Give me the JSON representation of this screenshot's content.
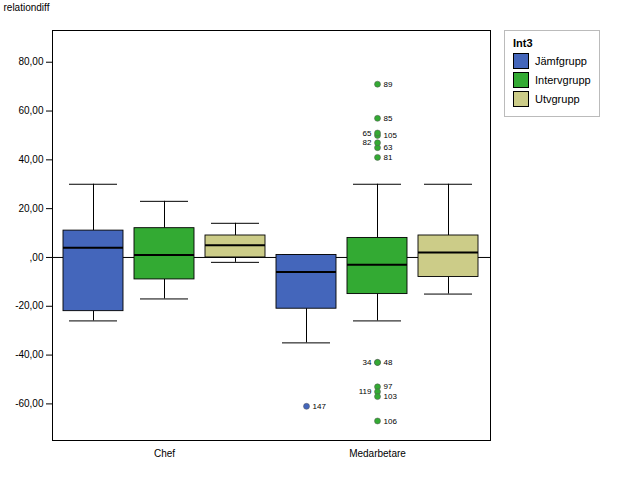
{
  "chart_data": {
    "type": "box",
    "ylabel": "relationdiff",
    "categories": [
      "Chef",
      "Medarbetare"
    ],
    "legend_title": "Int3",
    "legend": "right",
    "grid": false,
    "ylim": [
      -75,
      93
    ],
    "yticks": [
      {
        "value": -60,
        "label": "-60,00"
      },
      {
        "value": -40,
        "label": "-40,00"
      },
      {
        "value": -20,
        "label": "-20,00"
      },
      {
        "value": 0,
        "label": ",00"
      },
      {
        "value": 20,
        "label": "20,00"
      },
      {
        "value": 40,
        "label": "40,00"
      },
      {
        "value": 60,
        "label": "60,00"
      },
      {
        "value": 80,
        "label": "80,00"
      }
    ],
    "series": [
      {
        "name": "Jämfgrupp",
        "color": "#4466bb",
        "values": [
          {
            "whislo": -26,
            "q1": -22,
            "med": 4,
            "q3": 11,
            "whishi": 30,
            "outliers": []
          },
          {
            "whislo": -35,
            "q1": -21,
            "med": -6,
            "q3": 1,
            "whishi": 1,
            "outliers": [
              {
                "value": -61,
                "label": "147"
              }
            ]
          }
        ]
      },
      {
        "name": "Intervgrupp",
        "color": "#33aa33",
        "values": [
          {
            "whislo": -17,
            "q1": -9,
            "med": 1,
            "q3": 12,
            "whishi": 23,
            "outliers": []
          },
          {
            "whislo": -26,
            "q1": -15,
            "med": -3,
            "q3": 8,
            "whishi": 30,
            "outliers": [
              {
                "value": 41,
                "label": "81"
              },
              {
                "value": 45,
                "label": "63"
              },
              {
                "value": 47,
                "label": "82"
              },
              {
                "value": 50,
                "label": "105"
              },
              {
                "value": 51,
                "label": "65"
              },
              {
                "value": 57,
                "label": "85"
              },
              {
                "value": 71,
                "label": "89"
              },
              {
                "value": -43,
                "label": "48"
              },
              {
                "value": -43,
                "label": "34"
              },
              {
                "value": -53,
                "label": "97"
              },
              {
                "value": -55,
                "label": "119"
              },
              {
                "value": -57,
                "label": "103"
              },
              {
                "value": -67,
                "label": "106"
              }
            ]
          }
        ]
      },
      {
        "name": "Utvgrupp",
        "color": "#cccc88",
        "values": [
          {
            "whislo": -2,
            "q1": 0,
            "med": 5,
            "q3": 9,
            "whishi": 14,
            "outliers": []
          },
          {
            "whislo": -15,
            "q1": -8,
            "med": 2,
            "q3": 9,
            "whishi": 30,
            "outliers": []
          }
        ]
      }
    ]
  }
}
